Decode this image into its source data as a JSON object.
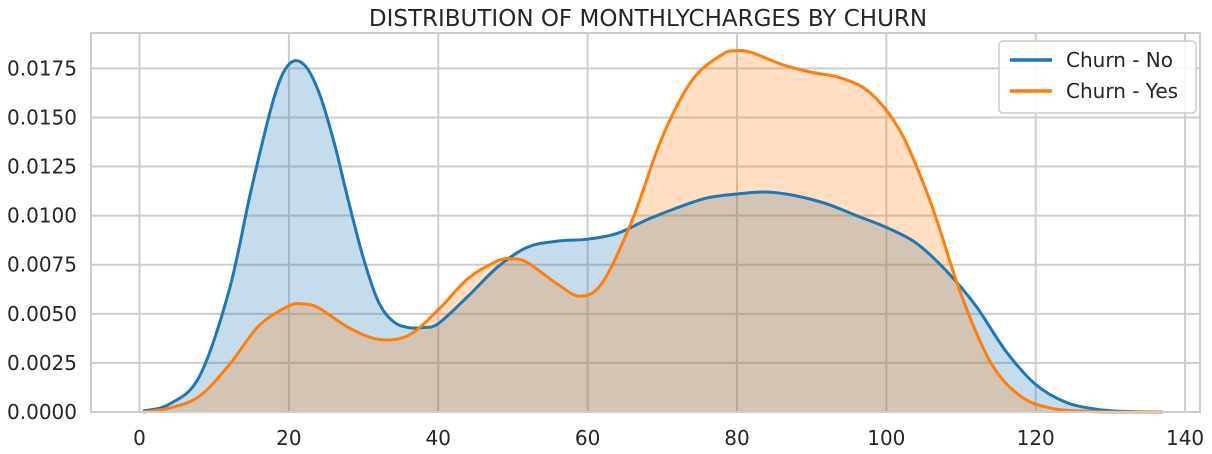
{
  "chart_data": {
    "type": "area",
    "title": "DISTRIBUTION OF MONTHLYCHARGES BY CHURN",
    "xlabel": "",
    "ylabel": "",
    "xlim": [
      -6.5,
      142
    ],
    "ylim": [
      0,
      0.0193
    ],
    "xticks": [
      "0",
      "20",
      "40",
      "60",
      "80",
      "100",
      "120",
      "140"
    ],
    "xtick_values": [
      0,
      20,
      40,
      60,
      80,
      100,
      120,
      140
    ],
    "yticks": [
      "0.0000",
      "0.0025",
      "0.0050",
      "0.0075",
      "0.0100",
      "0.0125",
      "0.0150",
      "0.0175"
    ],
    "ytick_values": [
      0,
      0.0025,
      0.005,
      0.0075,
      0.01,
      0.0125,
      0.015,
      0.0175
    ],
    "grid": true,
    "legend_position": "top-right",
    "series": [
      {
        "name": "Churn - No",
        "color": "#1f77b4",
        "x": [
          0.5,
          4,
          8,
          12,
          15,
          18,
          20,
          22,
          24,
          26,
          28,
          30,
          32,
          34,
          36,
          38,
          40,
          44,
          48,
          52,
          56,
          60,
          64,
          68,
          72,
          76,
          80,
          84,
          88,
          92,
          96,
          100,
          104,
          108,
          112,
          116,
          120,
          124,
          128,
          132,
          137
        ],
        "y": [
          5e-05,
          0.0004,
          0.0018,
          0.0062,
          0.0114,
          0.016,
          0.0177,
          0.0177,
          0.0163,
          0.0138,
          0.0107,
          0.0078,
          0.0056,
          0.0046,
          0.0043,
          0.0043,
          0.0045,
          0.0059,
          0.0074,
          0.0084,
          0.0087,
          0.0088,
          0.0091,
          0.0098,
          0.0104,
          0.0109,
          0.0111,
          0.0112,
          0.011,
          0.0106,
          0.01,
          0.0094,
          0.0086,
          0.0072,
          0.0054,
          0.0031,
          0.0014,
          0.0005,
          0.00015,
          3e-05,
          0.0
        ]
      },
      {
        "name": "Churn - Yes",
        "color": "#ff7f0e",
        "x": [
          0.5,
          4,
          8,
          12,
          16,
          20,
          22,
          24,
          28,
          32,
          36,
          40,
          44,
          48,
          50,
          52,
          56,
          59,
          62,
          66,
          70,
          74,
          78,
          80,
          82,
          86,
          90,
          94,
          98,
          102,
          106,
          110,
          114,
          118,
          122,
          126,
          130,
          137
        ],
        "y": [
          0.0,
          0.0002,
          0.0008,
          0.0024,
          0.0044,
          0.0054,
          0.0055,
          0.0053,
          0.0043,
          0.0037,
          0.0039,
          0.0052,
          0.0068,
          0.0077,
          0.0078,
          0.0076,
          0.0065,
          0.0059,
          0.0066,
          0.0098,
          0.014,
          0.0169,
          0.0182,
          0.0184,
          0.0183,
          0.0177,
          0.0173,
          0.017,
          0.0162,
          0.0142,
          0.0106,
          0.006,
          0.0025,
          0.0008,
          0.0002,
          5e-05,
          0.0,
          0.0
        ]
      }
    ]
  }
}
